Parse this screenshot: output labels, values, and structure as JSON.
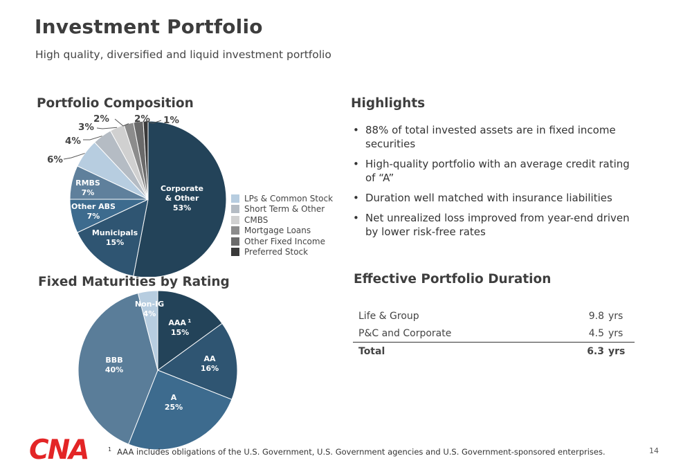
{
  "header": {
    "title": "Investment Portfolio",
    "subtitle": "High quality, diversified and liquid investment portfolio"
  },
  "composition": {
    "heading": "Portfolio Composition",
    "legend": [
      {
        "label": "LPs & Common Stock",
        "color": "#b7cde0"
      },
      {
        "label": "Short Term & Other",
        "color": "#b5bcc4"
      },
      {
        "label": "CMBS",
        "color": "#d0d0d0"
      },
      {
        "label": "Mortgage Loans",
        "color": "#8c8c8c"
      },
      {
        "label": "Other Fixed Income",
        "color": "#6a6a6a"
      },
      {
        "label": "Preferred Stock",
        "color": "#3a3a3a"
      }
    ]
  },
  "rating": {
    "heading": "Fixed Maturities by Rating"
  },
  "highlights": {
    "heading": "Highlights",
    "bullet_char": "•",
    "items": [
      "88% of total invested assets are in fixed income securities",
      "High-quality portfolio with an average credit rating of “A”",
      "Duration well matched with insurance liabilities",
      "Net unrealized loss improved from year-end driven by lower risk-free rates"
    ]
  },
  "duration": {
    "heading": "Effective Portfolio Duration",
    "rows": [
      {
        "label": "Life & Group",
        "value": "9.8",
        "unit": "yrs"
      },
      {
        "label": "P&C and Corporate",
        "value": "4.5",
        "unit": "yrs"
      }
    ],
    "total": {
      "label": "Total",
      "value": "6.3",
      "unit": "yrs"
    }
  },
  "footer": {
    "logo_text": "CNA",
    "logo_color": "#e32526",
    "footnote_marker": "1",
    "footnote": "AAA includes obligations of the U.S. Government, U.S. Government agencies and U.S. Government-sponsored enterprises.",
    "page_number": "14"
  },
  "chart_data": [
    {
      "type": "pie",
      "title": "Portfolio Composition",
      "slices": [
        {
          "name": "Corporate & Other",
          "value": 53,
          "label": "Corporate\n& Other\n53%",
          "color": "#234359"
        },
        {
          "name": "Municipals",
          "value": 15,
          "label": "Municipals\n15%",
          "color": "#2f5572"
        },
        {
          "name": "Other ABS",
          "value": 7,
          "label": "Other ABS\n7%",
          "color": "#3d6b8e"
        },
        {
          "name": "RMBS",
          "value": 7,
          "label": "RMBS\n7%",
          "color": "#5f809c"
        },
        {
          "name": "LPs & Common Stock",
          "value": 6,
          "label": "6%",
          "color": "#b7cde0"
        },
        {
          "name": "Short Term & Other",
          "value": 4,
          "label": "4%",
          "color": "#b5bcc4"
        },
        {
          "name": "CMBS",
          "value": 3,
          "label": "3%",
          "color": "#d0d0d0"
        },
        {
          "name": "Mortgage Loans",
          "value": 2,
          "label": "2%",
          "color": "#8c8c8c"
        },
        {
          "name": "Other Fixed Income",
          "value": 2,
          "label": "2%",
          "color": "#6a6a6a"
        },
        {
          "name": "Preferred Stock",
          "value": 1,
          "label": "1%",
          "color": "#3a3a3a"
        }
      ]
    },
    {
      "type": "pie",
      "title": "Fixed Maturities by Rating",
      "slices": [
        {
          "name": "AAA",
          "value": 15,
          "label": "AAA\n15%",
          "footnote": "1",
          "color": "#234359"
        },
        {
          "name": "AA",
          "value": 16,
          "label": "AA\n16%",
          "color": "#2f5572"
        },
        {
          "name": "A",
          "value": 25,
          "label": "A\n25%",
          "color": "#3d6b8e"
        },
        {
          "name": "BBB",
          "value": 40,
          "label": "BBB\n40%",
          "color": "#5a7d99"
        },
        {
          "name": "Non-IG",
          "value": 4,
          "label": "Non-IG\n4%",
          "color": "#b7cde0"
        }
      ]
    }
  ]
}
